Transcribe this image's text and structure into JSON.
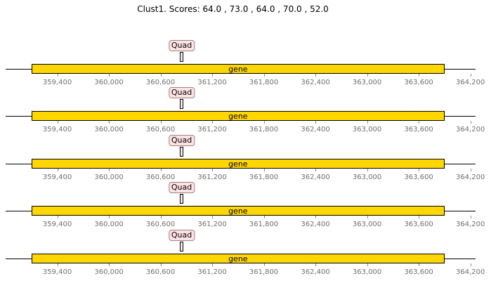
{
  "figure": {
    "title": "Clust1. Scores: 64.0 , 73.0 , 64.0 , 70.0 , 52.0"
  },
  "colors": {
    "gene_fill": "#ffd700",
    "quad_fill": "#fde3e3",
    "axis": "#000000",
    "tick_text": "#6f6f6f"
  },
  "chart_data": {
    "type": "gene-track",
    "x_range": [
      358800,
      364260
    ],
    "ticks": [
      359400,
      360000,
      360600,
      361200,
      361800,
      362400,
      363000,
      363600,
      364200
    ],
    "tick_labels": [
      "359,400",
      "360,000",
      "360,600",
      "361,200",
      "361,800",
      "362,400",
      "363,000",
      "363,600",
      "364,200"
    ],
    "tracks": [
      {
        "features": [
          {
            "label": "gene",
            "start": 359100,
            "end": 363900
          },
          {
            "label": "Quad",
            "start": 360830,
            "end": 360860
          }
        ]
      },
      {
        "features": [
          {
            "label": "gene",
            "start": 359100,
            "end": 363900
          },
          {
            "label": "Quad",
            "start": 360830,
            "end": 360860
          }
        ]
      },
      {
        "features": [
          {
            "label": "gene",
            "start": 359100,
            "end": 363900
          },
          {
            "label": "Quad",
            "start": 360830,
            "end": 360860
          }
        ]
      },
      {
        "features": [
          {
            "label": "gene",
            "start": 359100,
            "end": 363900
          },
          {
            "label": "Quad",
            "start": 360830,
            "end": 360860
          }
        ]
      },
      {
        "features": [
          {
            "label": "gene",
            "start": 359100,
            "end": 363900
          },
          {
            "label": "Quad",
            "start": 360830,
            "end": 360860
          }
        ]
      }
    ]
  }
}
